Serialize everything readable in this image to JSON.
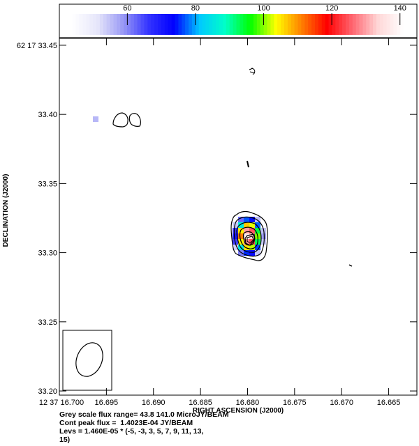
{
  "chart_data": {
    "type": "heatmap",
    "colorbar": {
      "range": [
        43.8,
        141.0
      ],
      "tick_values": [
        60,
        80,
        100,
        120,
        140
      ],
      "tick_labels": [
        "60",
        "80",
        "100",
        "120",
        "140"
      ]
    },
    "x_axis": {
      "label": "RIGHT ASCENSION (J2000)",
      "range_sec": [
        16.7,
        16.662
      ],
      "tick_values": [
        16.7,
        16.695,
        16.69,
        16.685,
        16.68,
        16.675,
        16.67,
        16.665
      ],
      "tick_labels": [
        "12 37 16.700",
        "16.695",
        "16.690",
        "16.685",
        "16.680",
        "16.675",
        "16.670",
        "16.665"
      ]
    },
    "y_axis": {
      "label": "DECLINATION (J2000)",
      "range_arcsec": [
        33.197,
        33.455
      ],
      "tick_values": [
        33.45,
        33.4,
        33.35,
        33.3,
        33.25,
        33.2
      ],
      "tick_labels": [
        "62 17 33.45",
        "33.40",
        "33.35",
        "33.30",
        "33.25",
        "33.20"
      ]
    },
    "source": {
      "ra_sec": 16.6799,
      "dec_arcsec": 33.312,
      "peak_flux": 140.2
    },
    "secondary_feature": {
      "ra_sec": 16.6963,
      "dec_arcsec": 33.398
    },
    "colors": {
      "colormap": [
        "#ffffff",
        "#e6e6fa",
        "#9999f5",
        "#3333ff",
        "#0000ff",
        "#00c8ff",
        "#00ffc8",
        "#00ff00",
        "#ffff00",
        "#ff8000",
        "#ff0000",
        "#ff6670",
        "#ffd7d7",
        "#ffffff"
      ]
    }
  },
  "caption": {
    "line1": "Grey scale flux range= 43.8 141.0 MicroJY/BEAM",
    "line2": "Cont peak flux =  1.4023E-04 JY/BEAM",
    "line3": "Levs = 1.460E-05 * (-5, -3, 3, 5, 7, 9, 11, 13,",
    "line4": "15)"
  }
}
